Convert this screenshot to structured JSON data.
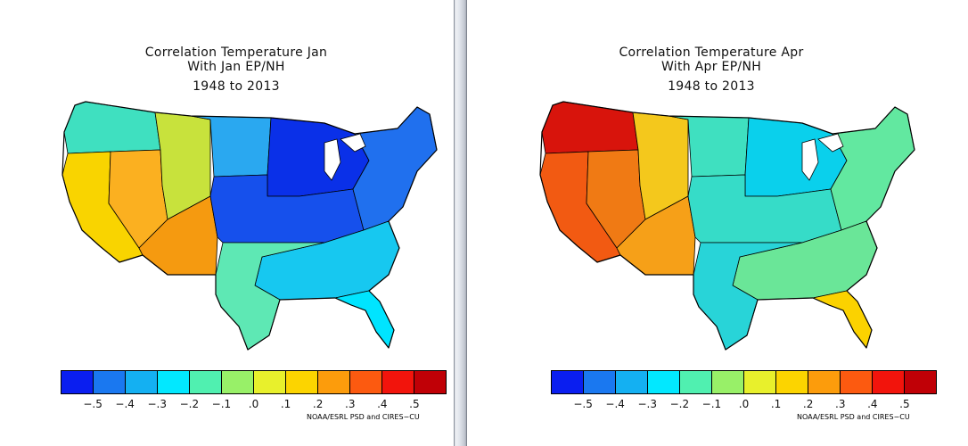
{
  "maps": [
    {
      "title": "Correlation Temperature Jan",
      "subtitle": "With Jan EP/NH",
      "period": "1948 to 2013",
      "regions": {
        "pacific_nw": "#3fe0c0",
        "california": "#f9d400",
        "great_basin": "#fbb020",
        "southwest": "#f59a10",
        "rockies": "#c8e23c",
        "northern_plains": "#2aa8f0",
        "upper_midwest": "#0a30e8",
        "midwest": "#1650ec",
        "northeast": "#2070ee",
        "south": "#17c8f0",
        "texas": "#5ee8b4",
        "florida": "#00e4ff"
      }
    },
    {
      "title": "Correlation Temperature Apr",
      "subtitle": "With Apr EP/NH",
      "period": "1948 to 2013",
      "regions": {
        "pacific_nw": "#d8140c",
        "california": "#f25a12",
        "great_basin": "#f07a14",
        "southwest": "#f6a018",
        "rockies": "#f4c81c",
        "northern_plains": "#3fe0c0",
        "upper_midwest": "#0ad0ec",
        "midwest": "#36dcc8",
        "northeast": "#62e8a0",
        "south": "#6ae698",
        "texas": "#28d4d8",
        "florida": "#fbd200"
      }
    }
  ],
  "legend": {
    "colors": [
      "#0a1ef0",
      "#1a78f0",
      "#14b0f2",
      "#02e8ff",
      "#50f0b0",
      "#98f068",
      "#e8f02c",
      "#fcd400",
      "#fc9c0c",
      "#fc5a10",
      "#f2140c",
      "#c00006"
    ],
    "ticks": [
      "−.5",
      "−.4",
      "−.3",
      "−.2",
      "−.1",
      ".0",
      ".1",
      ".2",
      ".3",
      ".4",
      ".5"
    ]
  },
  "credit": "NOAA/ESRL PSD and CIRES−CU"
}
